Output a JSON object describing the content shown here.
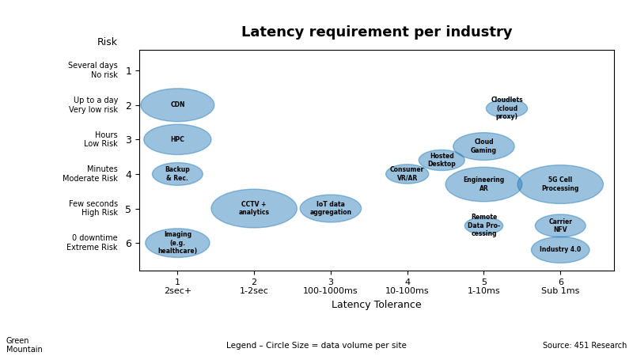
{
  "chart_data": {
    "type": "bubble",
    "title": "Latency requirement per industry",
    "x_label": "Latency Tolerance",
    "y_label": "Risk",
    "xlim": [
      0.5,
      6.7
    ],
    "ylim": [
      6.8,
      0.4
    ],
    "xticks": [
      {
        "value": 1,
        "label": "1\n2sec+"
      },
      {
        "value": 2,
        "label": "2\n1-2sec"
      },
      {
        "value": 3,
        "label": "3\n100-1000ms"
      },
      {
        "value": 4,
        "label": "4\n10-100ms"
      },
      {
        "value": 5,
        "label": "5\n1-10ms"
      },
      {
        "value": 6,
        "label": "6\nSub 1ms"
      }
    ],
    "yticks": [
      6,
      5,
      4,
      3,
      2,
      1
    ],
    "y_tick_descriptions": [
      "0 downtime\nExtreme Risk",
      "Few seconds\nHigh Risk",
      "Minutes\nModerate Risk",
      "Hours\nLow Risk",
      "Up to a day\nVery low risk",
      "Several days\nNo risk"
    ],
    "grid": false,
    "points": [
      {
        "x": 1,
        "y": 6,
        "r": 0.42,
        "label": "Imaging\n(e.g.\nhealthcare)"
      },
      {
        "x": 1,
        "y": 4,
        "r": 0.33,
        "label": "Backup\n& Rec."
      },
      {
        "x": 1,
        "y": 3,
        "r": 0.44,
        "label": "HPC"
      },
      {
        "x": 1,
        "y": 2,
        "r": 0.48,
        "label": "CDN"
      },
      {
        "x": 2,
        "y": 5,
        "r": 0.56,
        "label": "CCTV +\nanalytics"
      },
      {
        "x": 3,
        "y": 5,
        "r": 0.4,
        "label": "IoT data\naggregation"
      },
      {
        "x": 4,
        "y": 4,
        "r": 0.28,
        "label": "Consumer\nVR/AR"
      },
      {
        "x": 4.45,
        "y": 3.6,
        "r": 0.3,
        "label": "Hosted\nDesktop"
      },
      {
        "x": 5,
        "y": 5.5,
        "r": 0.25,
        "label": "Remote\nData Pro-\ncessing"
      },
      {
        "x": 5,
        "y": 4.3,
        "r": 0.5,
        "label": "Engineering\nAR"
      },
      {
        "x": 5,
        "y": 3.2,
        "r": 0.4,
        "label": "Cloud\nGaming"
      },
      {
        "x": 5.3,
        "y": 2.1,
        "r": 0.27,
        "label": "Cloudlets\n(cloud\nproxy)"
      },
      {
        "x": 6,
        "y": 6.2,
        "r": 0.38,
        "label": "Industry 4.0"
      },
      {
        "x": 6,
        "y": 5.5,
        "r": 0.33,
        "label": "Carrier\nNFV"
      },
      {
        "x": 6,
        "y": 4.3,
        "r": 0.56,
        "label": "5G Cell\nProcessing"
      }
    ],
    "source": "Source: 451 Research",
    "legend_note": "Legend – Circle Size = data volume per site",
    "logo_text": "Green\nMountain"
  }
}
